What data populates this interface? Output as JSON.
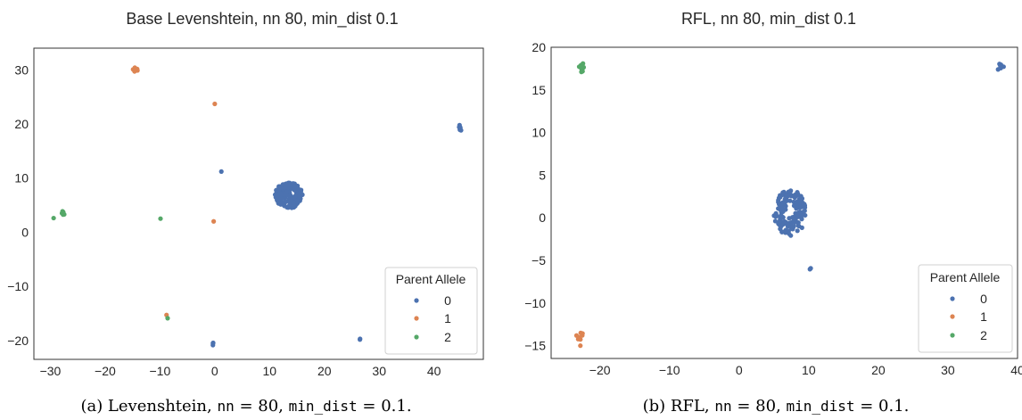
{
  "chart_data": [
    {
      "type": "scatter",
      "title": "Base Levenshtein, nn 80, min_dist 0.1",
      "xlabel": "",
      "ylabel": "",
      "xlim": [
        -33,
        49
      ],
      "ylim": [
        -23.5,
        34
      ],
      "xticks": [
        -30,
        -20,
        -10,
        0,
        10,
        20,
        30,
        40
      ],
      "yticks": [
        -20,
        -10,
        0,
        10,
        20,
        30
      ],
      "grid": false,
      "legend": {
        "title": "Parent Allele",
        "placement": "lower-right",
        "entries": [
          "0",
          "1",
          "2"
        ]
      },
      "series": [
        {
          "name": "0",
          "color": "#4c72b0",
          "clusters": [
            {
              "x": 13.5,
              "y": 6.8,
              "rx": 2.5,
              "ry": 2.4,
              "n": 140
            },
            {
              "x": 44.8,
              "y": 19.3,
              "rx": 0.5,
              "ry": 0.5,
              "n": 6
            },
            {
              "x": 1.2,
              "y": 11.2,
              "rx": 0,
              "ry": 0,
              "n": 1
            },
            {
              "x": 26.5,
              "y": -19.8,
              "rx": 0.2,
              "ry": 0.2,
              "n": 2
            },
            {
              "x": -0.3,
              "y": -20.6,
              "rx": 0.2,
              "ry": 0.3,
              "n": 3
            }
          ]
        },
        {
          "name": "1",
          "color": "#dd8452",
          "clusters": [
            {
              "x": -14.5,
              "y": 30.0,
              "rx": 0.5,
              "ry": 0.4,
              "n": 6
            },
            {
              "x": 0.0,
              "y": 23.7,
              "rx": 0,
              "ry": 0,
              "n": 1
            },
            {
              "x": -0.2,
              "y": 2.0,
              "rx": 0,
              "ry": 0,
              "n": 1
            },
            {
              "x": -8.8,
              "y": -15.3,
              "rx": 0,
              "ry": 0,
              "n": 1
            }
          ]
        },
        {
          "name": "2",
          "color": "#55a868",
          "clusters": [
            {
              "x": -27.6,
              "y": 3.6,
              "rx": 0.5,
              "ry": 0.5,
              "n": 6
            },
            {
              "x": -29.4,
              "y": 2.6,
              "rx": 0,
              "ry": 0,
              "n": 1
            },
            {
              "x": -9.9,
              "y": 2.5,
              "rx": 0,
              "ry": 0,
              "n": 1
            },
            {
              "x": -8.6,
              "y": -15.9,
              "rx": 0,
              "ry": 0,
              "n": 1
            }
          ]
        }
      ],
      "caption": {
        "prefix": "(a) Levenshtein, ",
        "k1": "nn",
        "mid": " = 80, ",
        "k2": "min_dist",
        "suffix": " = 0.1."
      }
    },
    {
      "type": "scatter",
      "title": "RFL, nn 80, min_dist 0.1",
      "xlabel": "",
      "ylabel": "",
      "xlim": [
        -27,
        40
      ],
      "ylim": [
        -16.5,
        20
      ],
      "xticks": [
        -20,
        -10,
        0,
        10,
        20,
        30,
        40
      ],
      "yticks": [
        -15,
        -10,
        -5,
        0,
        5,
        10,
        15,
        20
      ],
      "grid": false,
      "legend": {
        "title": "Parent Allele",
        "placement": "lower-right",
        "entries": [
          "0",
          "1",
          "2"
        ]
      },
      "series": [
        {
          "name": "0",
          "color": "#4c72b0",
          "clusters": [
            {
              "x": 7.3,
              "y": 0.6,
              "rx": 2.3,
              "ry": 2.7,
              "n": 160,
              "ring": true
            },
            {
              "x": 37.5,
              "y": 17.7,
              "rx": 0.5,
              "ry": 0.5,
              "n": 6
            },
            {
              "x": 10.3,
              "y": -5.9,
              "rx": 0.2,
              "ry": 0.2,
              "n": 2
            }
          ]
        },
        {
          "name": "1",
          "color": "#dd8452",
          "clusters": [
            {
              "x": -22.9,
              "y": -13.8,
              "rx": 0.5,
              "ry": 0.6,
              "n": 7
            },
            {
              "x": -22.8,
              "y": -15.0,
              "rx": 0.1,
              "ry": 0.1,
              "n": 1
            }
          ]
        },
        {
          "name": "2",
          "color": "#55a868",
          "clusters": [
            {
              "x": -22.4,
              "y": 17.8,
              "rx": 0.6,
              "ry": 0.5,
              "n": 8
            },
            {
              "x": -22.6,
              "y": 17.2,
              "rx": 0.2,
              "ry": 0.1,
              "n": 2
            }
          ]
        }
      ],
      "caption": {
        "prefix": "(b) RFL, ",
        "k1": "nn",
        "mid": " = 80, ",
        "k2": "min_dist",
        "suffix": " = 0.1."
      }
    }
  ]
}
